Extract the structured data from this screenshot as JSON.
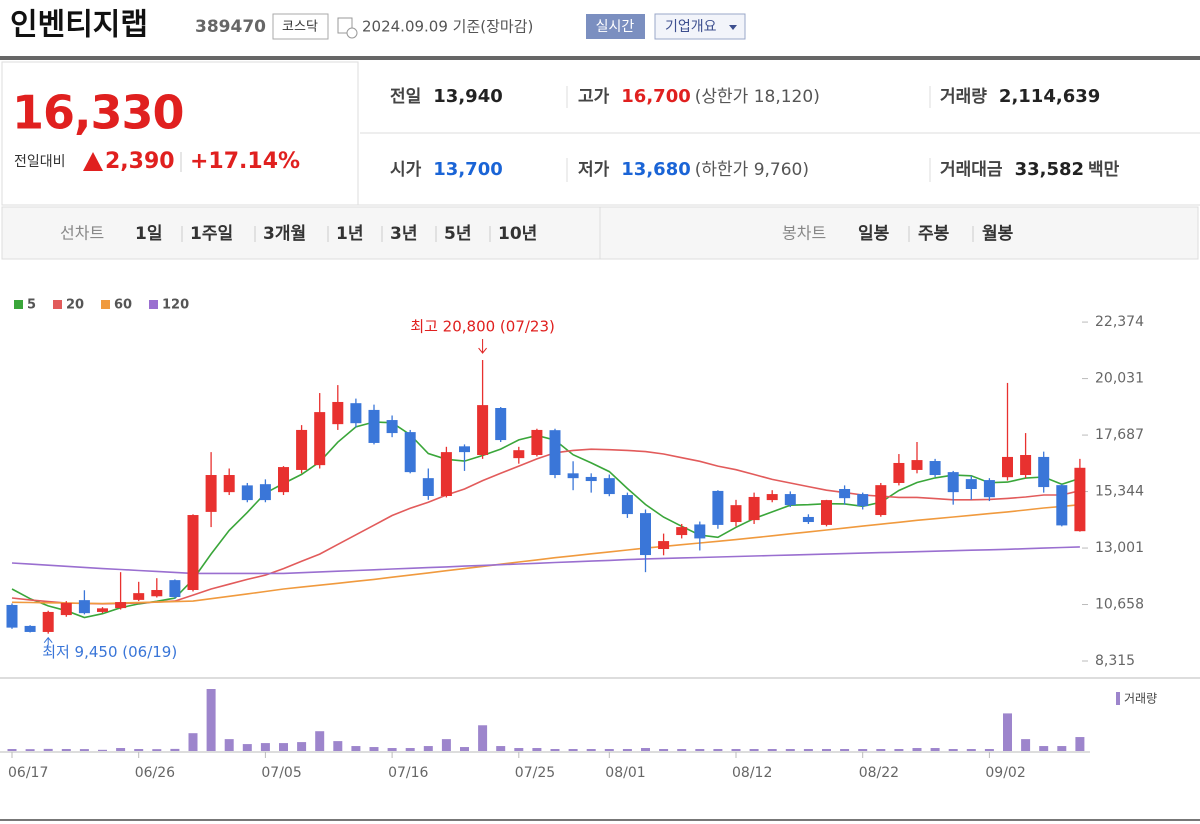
{
  "header": {
    "name": "인벤티지랩",
    "code": "389470",
    "market": "코스닥",
    "date": "2024.09.09 기준(장마감)",
    "realtime": "실시간",
    "company_info": "기업개요"
  },
  "quote": {
    "price": "16,330",
    "change_label": "전일대비",
    "change": "2,390",
    "change_pct": "+17.14%",
    "stats": [
      {
        "label": "전일",
        "value": "13,940",
        "color": "#222222"
      },
      {
        "label": "고가",
        "value": "16,700",
        "note": "(상한가 18,120)",
        "color": "#e0201f"
      },
      {
        "label": "거래량",
        "value": "2,114,639",
        "color": "#222222"
      },
      {
        "label": "시가",
        "value": "13,700",
        "color": "#1a64d6"
      },
      {
        "label": "저가",
        "value": "13,680",
        "note": "(하한가 9,760)",
        "color": "#1a64d6"
      },
      {
        "label": "거래대금",
        "value": "33,582",
        "unit": "백만",
        "color": "#222222"
      }
    ]
  },
  "tabs": {
    "line_label": "선차트",
    "line_periods": [
      "1일",
      "1주일",
      "3개월",
      "1년",
      "3년",
      "5년",
      "10년"
    ],
    "candle_label": "봉차트",
    "candle_periods": [
      "일봉",
      "주봉",
      "월봉"
    ]
  },
  "chart_data": {
    "type": "candlestick",
    "up_color": "#e8312f",
    "down_color": "#3a76d8",
    "categories": [
      "06/17",
      null,
      null,
      null,
      null,
      null,
      null,
      "06/26",
      null,
      null,
      null,
      null,
      null,
      null,
      "07/05",
      null,
      null,
      null,
      null,
      null,
      null,
      "07/16",
      null,
      null,
      null,
      null,
      null,
      null,
      "07/25",
      null,
      null,
      null,
      null,
      "08/01",
      null,
      null,
      null,
      null,
      null,
      null,
      "08/12",
      null,
      null,
      null,
      null,
      null,
      null,
      "08/22",
      null,
      null,
      null,
      null,
      null,
      null,
      "09/02",
      null,
      null,
      null,
      null,
      null
    ],
    "open": [
      10640,
      9770,
      9520,
      10220,
      10840,
      10350,
      10510,
      10850,
      11000,
      11670,
      11260,
      14500,
      15320,
      15600,
      15650,
      15320,
      16240,
      16440,
      18140,
      19010,
      18730,
      18310,
      17810,
      15900,
      15160,
      17220,
      16860,
      18810,
      16730,
      16860,
      17890,
      16100,
      15950,
      15900,
      15200,
      14450,
      12960,
      13540,
      13980,
      15370,
      14080,
      14160,
      14990,
      15240,
      14290,
      13960,
      15450,
      15240,
      14370,
      15700,
      16240,
      16610,
      16150,
      15860,
      15820,
      15940,
      16030,
      16780,
      15610,
      13700
    ],
    "high": [
      10700,
      9800,
      10400,
      10800,
      11250,
      10550,
      12000,
      11600,
      11750,
      11700,
      14400,
      16980,
      16300,
      15700,
      15850,
      16400,
      18100,
      19430,
      19760,
      19200,
      18950,
      18500,
      17900,
      16300,
      17200,
      17300,
      20800,
      18850,
      17200,
      17950,
      17950,
      16600,
      16100,
      16050,
      15300,
      14600,
      13600,
      14000,
      14100,
      15400,
      15000,
      15300,
      15400,
      15350,
      14400,
      15000,
      15600,
      15300,
      15700,
      16900,
      17400,
      16700,
      16200,
      16000,
      15900,
      19850,
      17770,
      17000,
      15650,
      16700
    ],
    "low": [
      9650,
      9500,
      9450,
      10150,
      10250,
      10300,
      10450,
      10800,
      10950,
      10900,
      11200,
      13870,
      15200,
      14900,
      14900,
      15200,
      16100,
      16300,
      17900,
      18000,
      17300,
      17600,
      16100,
      15000,
      15100,
      16200,
      16700,
      17400,
      16500,
      16800,
      15900,
      15400,
      15300,
      15150,
      14250,
      12000,
      12700,
      13400,
      12900,
      13800,
      13900,
      14000,
      14900,
      14700,
      14000,
      13900,
      14800,
      14600,
      14300,
      15600,
      16100,
      15950,
      14800,
      15000,
      14950,
      15800,
      15900,
      15300,
      13900,
      13680
    ],
    "close": [
      9700,
      9520,
      10350,
      10720,
      10300,
      10500,
      10760,
      11130,
      11260,
      10970,
      14370,
      16030,
      16030,
      14990,
      14990,
      16360,
      17900,
      18640,
      19060,
      18180,
      17360,
      17770,
      16150,
      15160,
      16980,
      16980,
      18930,
      17480,
      17060,
      17900,
      16030,
      15900,
      15780,
      15240,
      14410,
      12710,
      13290,
      13870,
      13400,
      13960,
      14780,
      15120,
      15240,
      14780,
      14080,
      14990,
      15070,
      14740,
      15610,
      16530,
      16650,
      16030,
      15320,
      15450,
      15110,
      16780,
      16860,
      15530,
      13940,
      16330
    ],
    "moving_averages": [
      {
        "name": "5",
        "color": "#3aa63a",
        "values": [
          11300,
          10900,
          10600,
          10400,
          10118,
          10278,
          10526,
          10682,
          10790,
          10924,
          11698,
          12752,
          13732,
          14478,
          15282,
          15680,
          16054,
          16576,
          17390,
          18028,
          18228,
          18202,
          17704,
          16924,
          16684,
          16608,
          16840,
          17106,
          17486,
          17670,
          17480,
          16874,
          16534,
          16170,
          15472,
          14808,
          14286,
          13904,
          13536,
          13446,
          13860,
          14226,
          14500,
          14776,
          14800,
          14842,
          14832,
          14732,
          14898,
          15388,
          15720,
          15912,
          16028,
          15996,
          15712,
          15738,
          15904,
          15946,
          15644,
          15888
        ]
      },
      {
        "name": "20",
        "color": "#e25b5b",
        "values": [
          10930,
          10850,
          10780,
          10720,
          10700,
          10690,
          10700,
          10720,
          10760,
          10800,
          11050,
          11300,
          11500,
          11700,
          11880,
          12150,
          12450,
          12750,
          13150,
          13550,
          13950,
          14350,
          14650,
          14900,
          15200,
          15450,
          15800,
          16100,
          16400,
          16700,
          16950,
          17050,
          17100,
          17080,
          17050,
          17000,
          16900,
          16750,
          16600,
          16400,
          16250,
          16050,
          15850,
          15700,
          15550,
          15400,
          15300,
          15200,
          15150,
          15100,
          15100,
          15050,
          15000,
          15000,
          15020,
          15060,
          15120,
          15200,
          15200,
          15380
        ]
      },
      {
        "name": "60",
        "color": "#f09a3e",
        "values": [
          10750,
          10740,
          10730,
          10720,
          10710,
          10700,
          10720,
          10740,
          10760,
          10780,
          10800,
          10900,
          11000,
          11100,
          11200,
          11300,
          11380,
          11460,
          11540,
          11620,
          11700,
          11790,
          11880,
          11970,
          12060,
          12150,
          12240,
          12330,
          12420,
          12510,
          12600,
          12680,
          12760,
          12840,
          12920,
          13000,
          13070,
          13140,
          13210,
          13280,
          13350,
          13430,
          13510,
          13590,
          13670,
          13750,
          13830,
          13910,
          13990,
          14070,
          14150,
          14220,
          14290,
          14360,
          14430,
          14500,
          14580,
          14660,
          14730,
          14800
        ]
      },
      {
        "name": "120",
        "color": "#9a6fd0",
        "values": [
          12380,
          12334,
          12288,
          12242,
          12196,
          12150,
          12110,
          12070,
          12030,
          11990,
          11950,
          11950,
          11950,
          11950,
          11950,
          11950,
          11980,
          12010,
          12040,
          12070,
          12100,
          12130,
          12160,
          12190,
          12220,
          12250,
          12280,
          12310,
          12340,
          12370,
          12400,
          12430,
          12460,
          12490,
          12520,
          12550,
          12570,
          12590,
          12610,
          12630,
          12650,
          12670,
          12690,
          12710,
          12730,
          12750,
          12770,
          12790,
          12810,
          12830,
          12850,
          12870,
          12890,
          12910,
          12930,
          12950,
          12975,
          13000,
          13025,
          13050
        ]
      }
    ],
    "volume": {
      "name": "거래량",
      "color": "#9d85cc",
      "values": [
        300000,
        280000,
        320000,
        300000,
        290000,
        180000,
        450000,
        300000,
        280000,
        320000,
        2700000,
        9400000,
        1800000,
        1050000,
        1200000,
        1200000,
        1350000,
        3000000,
        1500000,
        750000,
        600000,
        450000,
        450000,
        750000,
        1800000,
        600000,
        3900000,
        750000,
        450000,
        450000,
        300000,
        300000,
        300000,
        300000,
        300000,
        450000,
        300000,
        300000,
        300000,
        300000,
        300000,
        300000,
        300000,
        300000,
        300000,
        300000,
        300000,
        300000,
        300000,
        300000,
        450000,
        450000,
        300000,
        300000,
        300000,
        5700000,
        1800000,
        750000,
        750000,
        2114639
      ]
    },
    "ylim": [
      7610,
      23290
    ],
    "yticks": [
      {
        "value": 8315,
        "label": "8,315"
      },
      {
        "value": 10658,
        "label": "10,658"
      },
      {
        "value": 13001,
        "label": "13,001"
      },
      {
        "value": 15344,
        "label": "15,344"
      },
      {
        "value": 17687,
        "label": "17,687"
      },
      {
        "value": 20031,
        "label": "20,031"
      },
      {
        "value": 22374,
        "label": "22,374"
      }
    ],
    "annotations": [
      {
        "label": "최고 20,800 (07/23)",
        "value": 20800,
        "color": "#e0201f"
      },
      {
        "label": "최저 9,450 (06/19)",
        "value": 9450,
        "color": "#3a76d8"
      }
    ]
  }
}
